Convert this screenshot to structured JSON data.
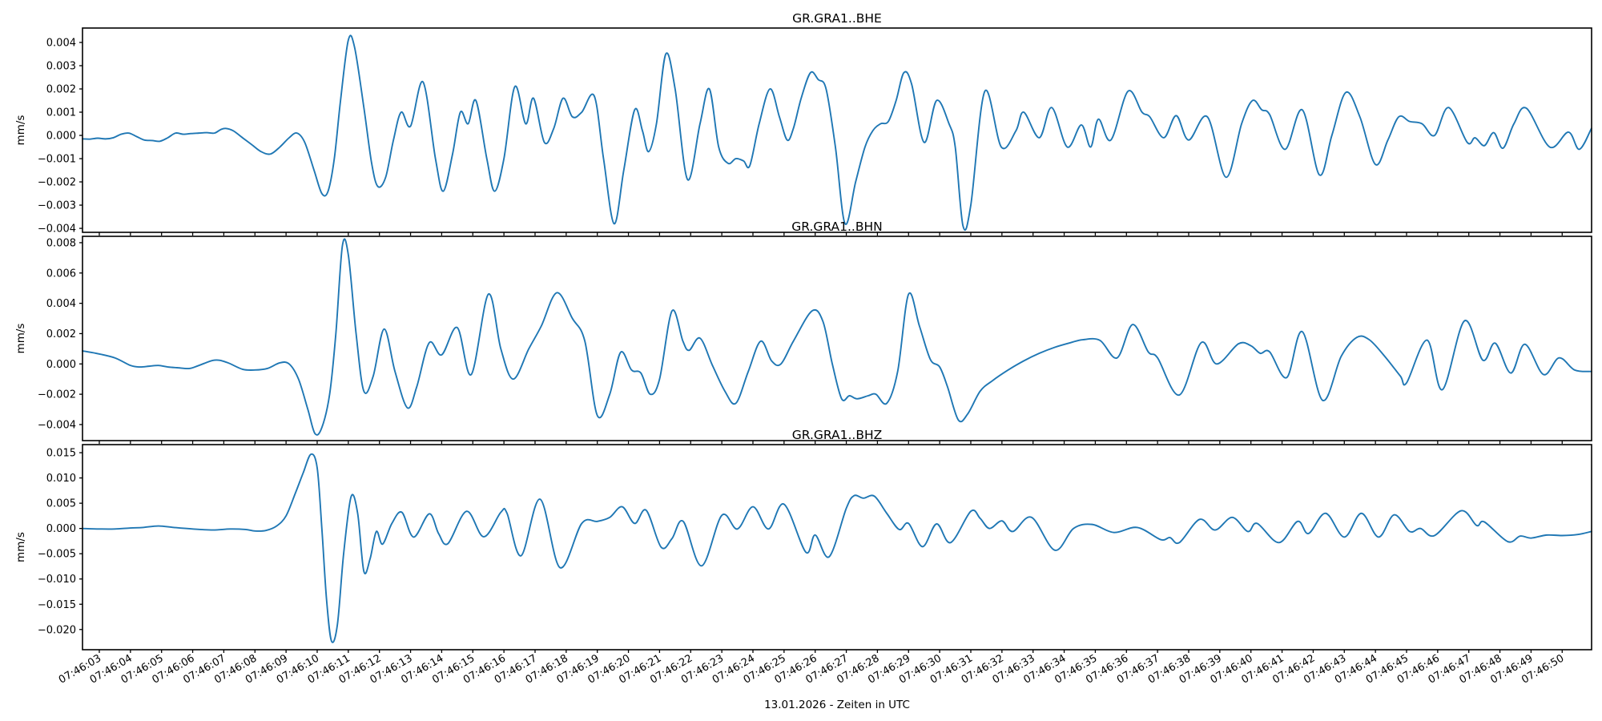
{
  "figure": {
    "background": "#ffffff",
    "trace_color": "#1f77b4",
    "spine_color": "#000000",
    "xlabel": "13.01.2026 - Zeiten in UTC"
  },
  "chart_data": {
    "type": "line",
    "legend": "none",
    "grid": false,
    "x_axis": {
      "xlabel": "13.01.2026 - Zeiten in UTC",
      "t_start_seconds_after_074600": 2.46,
      "t_end_seconds_after_074600": 50.945,
      "tick_seconds": [
        3,
        4,
        5,
        6,
        7,
        8,
        9,
        10,
        11,
        12,
        13,
        14,
        15,
        16,
        17,
        18,
        19,
        20,
        21,
        22,
        23,
        24,
        25,
        26,
        27,
        28,
        29,
        30,
        31,
        32,
        33,
        34,
        35,
        36,
        37,
        38,
        39,
        40,
        41,
        42,
        43,
        44,
        45,
        46,
        47,
        48,
        49,
        50
      ],
      "tick_labels": [
        "07:46:03",
        "07:46:04",
        "07:46:05",
        "07:46:06",
        "07:46:07",
        "07:46:08",
        "07:46:09",
        "07:46:10",
        "07:46:11",
        "07:46:12",
        "07:46:13",
        "07:46:14",
        "07:46:15",
        "07:46:16",
        "07:46:17",
        "07:46:18",
        "07:46:19",
        "07:46:20",
        "07:46:21",
        "07:46:22",
        "07:46:23",
        "07:46:24",
        "07:46:25",
        "07:46:26",
        "07:46:27",
        "07:46:28",
        "07:46:29",
        "07:46:30",
        "07:46:31",
        "07:46:32",
        "07:46:33",
        "07:46:34",
        "07:46:35",
        "07:46:36",
        "07:46:37",
        "07:46:38",
        "07:46:39",
        "07:46:40",
        "07:46:41",
        "07:46:42",
        "07:46:43",
        "07:46:44",
        "07:46:45",
        "07:46:46",
        "07:46:47",
        "07:46:48",
        "07:46:49",
        "07:46:50"
      ]
    },
    "subplots": [
      {
        "title": "GR.GRA1..BHE",
        "ylabel": "mm/s",
        "ylim": [
          -0.00417,
          0.00462
        ],
        "ytick_values": [
          0.004,
          0.003,
          0.002,
          0.001,
          0.0,
          -0.001,
          -0.002,
          -0.003,
          -0.004
        ],
        "ytick_labels": [
          "0.004",
          "0.003",
          "0.002",
          "0.001",
          "0.000",
          "−0.001",
          "−0.002",
          "−0.003",
          "−0.004"
        ],
        "t": [
          2.46,
          2.7,
          2.95,
          3.2,
          3.45,
          3.7,
          3.95,
          4.2,
          4.45,
          4.7,
          4.95,
          5.2,
          5.45,
          5.7,
          5.95,
          6.2,
          6.45,
          6.7,
          6.9,
          7.06,
          7.3,
          7.6,
          7.9,
          8.2,
          8.5,
          8.8,
          9.1,
          9.35,
          9.6,
          9.9,
          10.15,
          10.35,
          10.55,
          10.75,
          11.0,
          11.2,
          11.5,
          11.75,
          11.95,
          12.2,
          12.45,
          12.7,
          13.0,
          13.4,
          13.8,
          14.05,
          14.35,
          14.6,
          14.85,
          15.1,
          15.45,
          15.7,
          16.0,
          16.35,
          16.7,
          16.95,
          17.3,
          17.6,
          17.9,
          18.2,
          18.5,
          18.9,
          19.2,
          19.54,
          19.85,
          20.2,
          20.45,
          20.65,
          20.9,
          21.2,
          21.5,
          21.9,
          22.3,
          22.6,
          22.9,
          23.2,
          23.45,
          23.7,
          23.9,
          24.2,
          24.55,
          24.85,
          25.1,
          25.3,
          25.55,
          25.85,
          26.1,
          26.35,
          26.65,
          26.96,
          27.3,
          27.6,
          27.85,
          28.1,
          28.35,
          28.6,
          28.85,
          29.1,
          29.5,
          29.9,
          30.3,
          30.5,
          30.75,
          31.0,
          31.45,
          31.98,
          32.45,
          32.7,
          33.2,
          33.6,
          34.1,
          34.55,
          34.85,
          35.1,
          35.5,
          36.05,
          36.5,
          36.75,
          37.2,
          37.6,
          38.0,
          38.6,
          39.2,
          39.7,
          40.05,
          40.35,
          40.6,
          41.1,
          41.65,
          42.2,
          42.6,
          43.05,
          43.5,
          44.0,
          44.4,
          44.75,
          45.1,
          45.5,
          45.9,
          46.35,
          46.95,
          47.2,
          47.5,
          47.8,
          48.1,
          48.45,
          48.85,
          49.6,
          50.2,
          50.55,
          50.94
        ],
        "v": [
          -0.00015,
          -0.00016,
          -0.00012,
          -0.00015,
          -0.0001,
          5e-05,
          0.0001,
          -5e-05,
          -0.0002,
          -0.00022,
          -0.00025,
          -0.0001,
          0.0001,
          5e-05,
          8e-05,
          0.0001,
          0.00012,
          0.0001,
          0.00025,
          0.0003,
          0.0002,
          -0.0001,
          -0.0004,
          -0.0007,
          -0.0008,
          -0.0005,
          -0.0001,
          0.0001,
          -0.0003,
          -0.0015,
          -0.0025,
          -0.0024,
          -0.001,
          0.0015,
          0.0041,
          0.0038,
          0.0012,
          -0.0012,
          -0.0022,
          -0.0018,
          -0.0002,
          0.001,
          0.0004,
          0.0023,
          -0.001,
          -0.0024,
          -0.0008,
          0.001,
          0.0005,
          0.0015,
          -0.001,
          -0.0024,
          -0.001,
          0.0021,
          0.0005,
          0.0016,
          -0.0003,
          0.0003,
          0.0016,
          0.0008,
          0.001,
          0.0017,
          -0.001,
          -0.0038,
          -0.0015,
          0.0011,
          0.0002,
          -0.0007,
          0.0005,
          0.0035,
          0.002,
          -0.0019,
          0.0005,
          0.002,
          -0.0005,
          -0.0012,
          -0.001,
          -0.0011,
          -0.0013,
          0.0005,
          0.002,
          0.0008,
          -0.0002,
          0.0003,
          0.0016,
          0.0027,
          0.0024,
          0.002,
          -0.0005,
          -0.0038,
          -0.002,
          -0.0005,
          0.0002,
          0.0005,
          0.0006,
          0.0015,
          0.0027,
          0.0022,
          -0.0003,
          0.0015,
          0.0005,
          -0.0005,
          -0.0039,
          -0.003,
          0.0019,
          -0.0005,
          0.0002,
          0.001,
          -0.0001,
          0.0012,
          -0.0005,
          0.00045,
          -0.0005,
          0.0007,
          -0.0002,
          0.0019,
          0.001,
          0.0008,
          -0.0001,
          0.00085,
          -0.0002,
          0.0008,
          -0.0018,
          0.0005,
          0.0015,
          0.0011,
          0.0009,
          -0.0006,
          0.0011,
          -0.0017,
          0.0,
          0.00185,
          0.0008,
          -0.00125,
          -0.0002,
          0.0008,
          0.0006,
          0.0005,
          0.0,
          0.0012,
          -0.0003,
          -0.0001,
          -0.00044,
          0.00012,
          -0.00055,
          0.0005,
          0.00117,
          -0.0005,
          0.00014,
          -0.0006,
          0.0003
        ]
      },
      {
        "title": "GR.GRA1..BHN",
        "ylabel": "mm/s",
        "ylim": [
          -0.00506,
          0.00842
        ],
        "ytick_values": [
          0.008,
          0.006,
          0.004,
          0.002,
          0.0,
          -0.002,
          -0.004
        ],
        "ytick_labels": [
          "0.008",
          "0.006",
          "0.004",
          "0.002",
          "0.000",
          "−0.002",
          "−0.004"
        ],
        "t": [
          2.46,
          2.9,
          3.5,
          4.0,
          4.3,
          4.6,
          4.9,
          5.2,
          5.5,
          5.9,
          6.2,
          6.7,
          7.1,
          7.6,
          8.0,
          8.4,
          8.8,
          9.1,
          9.4,
          9.7,
          9.93,
          10.15,
          10.4,
          10.6,
          10.81,
          11.0,
          11.25,
          11.5,
          11.8,
          12.15,
          12.5,
          12.9,
          13.2,
          13.6,
          14.0,
          14.5,
          14.95,
          15.5,
          15.9,
          16.3,
          16.8,
          17.2,
          17.7,
          18.2,
          18.6,
          19.0,
          19.4,
          19.75,
          20.1,
          20.4,
          20.7,
          21.0,
          21.4,
          21.75,
          21.95,
          22.3,
          22.7,
          23.1,
          23.45,
          23.85,
          24.25,
          24.6,
          24.9,
          25.3,
          25.9,
          26.25,
          26.55,
          26.85,
          27.1,
          27.35,
          27.7,
          27.95,
          28.3,
          28.65,
          29.0,
          29.35,
          29.7,
          30.0,
          30.25,
          30.6,
          30.9,
          31.3,
          31.7,
          32.2,
          32.7,
          33.2,
          33.7,
          34.2,
          34.6,
          35.15,
          35.7,
          36.2,
          36.7,
          37.0,
          37.7,
          38.4,
          38.9,
          39.6,
          40.0,
          40.3,
          40.6,
          41.15,
          41.65,
          42.3,
          42.9,
          43.4,
          43.8,
          44.3,
          44.8,
          45.0,
          45.66,
          46.15,
          46.86,
          47.45,
          47.85,
          48.35,
          48.8,
          49.4,
          49.9,
          50.4,
          50.94
        ],
        "v": [
          0.00086,
          0.0007,
          0.0004,
          -0.0001,
          -0.0002,
          -0.00015,
          -0.0001,
          -0.0002,
          -0.00025,
          -0.0003,
          -0.0001,
          0.00025,
          0.0001,
          -0.00035,
          -0.0004,
          -0.0003,
          7e-05,
          0.0,
          -0.001,
          -0.003,
          -0.0046,
          -0.0042,
          -0.002,
          0.002,
          0.0078,
          0.0072,
          0.002,
          -0.0018,
          -0.0008,
          0.0023,
          -0.0005,
          -0.0029,
          -0.0015,
          0.0014,
          0.0006,
          0.0024,
          -0.0007,
          0.0046,
          0.001,
          -0.001,
          0.001,
          0.0025,
          0.0047,
          0.003,
          0.0015,
          -0.0034,
          -0.002,
          0.00077,
          -0.0004,
          -0.0006,
          -0.002,
          -0.001,
          0.0035,
          0.0015,
          0.0009,
          0.0017,
          -0.0001,
          -0.0018,
          -0.0026,
          -0.0005,
          0.0015,
          0.0002,
          0.0,
          0.0015,
          0.0035,
          0.0028,
          0.0,
          -0.0023,
          -0.0021,
          -0.0023,
          -0.0021,
          -0.002,
          -0.0026,
          -0.0005,
          0.0046,
          0.0025,
          0.0003,
          -0.0002,
          -0.0015,
          -0.0037,
          -0.0033,
          -0.0018,
          -0.0011,
          -0.0004,
          0.0002,
          0.0007,
          0.0011,
          0.0014,
          0.0016,
          0.00155,
          0.0004,
          0.0026,
          0.0008,
          0.0004,
          -0.00205,
          0.0014,
          0.0,
          0.00133,
          0.0012,
          0.0007,
          0.0008,
          -0.0009,
          0.00213,
          -0.0024,
          0.0005,
          0.00175,
          0.0016,
          0.0005,
          -0.0008,
          -0.00125,
          0.00157,
          -0.0017,
          0.00284,
          0.00025,
          0.00137,
          -0.0006,
          0.0013,
          -0.0007,
          0.0004,
          -0.0004,
          -0.0005
        ]
      },
      {
        "title": "GR.GRA1..BHZ",
        "ylabel": "mm/s",
        "ylim": [
          -0.024,
          0.0166
        ],
        "ytick_values": [
          0.015,
          0.01,
          0.005,
          0.0,
          -0.005,
          -0.01,
          -0.015,
          -0.02
        ],
        "ytick_labels": [
          "0.015",
          "0.010",
          "0.005",
          "0.000",
          "−0.005",
          "−0.010",
          "−0.015",
          "−0.020"
        ],
        "t": [
          2.46,
          3.0,
          3.5,
          4.0,
          4.4,
          4.9,
          5.4,
          6.0,
          6.65,
          7.2,
          7.7,
          8.0,
          8.35,
          8.7,
          9.0,
          9.3,
          9.55,
          9.8,
          10.0,
          10.15,
          10.3,
          10.46,
          10.65,
          10.85,
          11.09,
          11.3,
          11.5,
          11.7,
          11.9,
          12.1,
          12.4,
          12.72,
          13.1,
          13.6,
          13.9,
          14.2,
          14.8,
          15.35,
          15.9,
          16.1,
          16.55,
          17.16,
          17.8,
          18.5,
          19.0,
          19.4,
          19.8,
          20.2,
          20.57,
          21.05,
          21.4,
          21.76,
          22.35,
          23.0,
          23.5,
          24.0,
          24.5,
          25.0,
          25.7,
          26.0,
          26.45,
          27.0,
          27.25,
          27.55,
          27.9,
          28.3,
          28.7,
          29.0,
          29.45,
          29.9,
          30.35,
          31.0,
          31.3,
          31.6,
          32.0,
          32.35,
          32.95,
          33.7,
          34.3,
          34.9,
          35.6,
          36.35,
          37.1,
          37.4,
          37.7,
          38.35,
          38.85,
          39.4,
          39.9,
          40.2,
          40.9,
          41.5,
          41.85,
          42.4,
          43.0,
          43.55,
          44.1,
          44.6,
          45.1,
          45.45,
          45.9,
          46.75,
          47.25,
          47.5,
          48.25,
          48.65,
          49.0,
          49.5,
          50.0,
          50.5,
          50.94
        ],
        "v": [
          0.0,
          -0.0001,
          -0.0001,
          0.0001,
          0.0002,
          0.0005,
          0.0002,
          -0.0001,
          -0.0003,
          -0.0001,
          -0.0002,
          -0.0005,
          -0.0004,
          0.0005,
          0.0025,
          0.007,
          0.011,
          0.0147,
          0.012,
          0.0,
          -0.014,
          -0.0223,
          -0.019,
          -0.005,
          0.0063,
          0.003,
          -0.0085,
          -0.006,
          -0.0006,
          -0.0031,
          0.001,
          0.0032,
          -0.0017,
          0.0029,
          -0.001,
          -0.003,
          0.0034,
          -0.00165,
          0.0032,
          0.003,
          -0.0054,
          0.0058,
          -0.00775,
          0.001,
          0.0014,
          0.0022,
          0.0043,
          0.001,
          0.0036,
          -0.0037,
          -0.002,
          0.0014,
          -0.0074,
          0.0026,
          -0.0001,
          0.0043,
          -0.0001,
          0.0048,
          -0.0047,
          -0.0013,
          -0.0056,
          0.004,
          0.0065,
          0.006,
          0.0064,
          0.003,
          -0.0002,
          0.001,
          -0.0036,
          0.0009,
          -0.0028,
          0.0034,
          0.002,
          0.0,
          0.0015,
          -0.0006,
          0.0022,
          -0.0043,
          0.0,
          0.0008,
          -0.0008,
          0.0002,
          -0.0022,
          -0.0018,
          -0.0028,
          0.0018,
          -0.0003,
          0.0022,
          -0.0006,
          0.001,
          -0.0028,
          0.0014,
          -0.001,
          0.003,
          -0.0017,
          0.003,
          -0.0017,
          0.0027,
          -0.0006,
          0.0,
          -0.0014,
          0.0035,
          0.0006,
          0.0013,
          -0.0026,
          -0.0015,
          -0.0019,
          -0.0013,
          -0.0014,
          -0.0012,
          -0.0006
        ]
      }
    ]
  }
}
